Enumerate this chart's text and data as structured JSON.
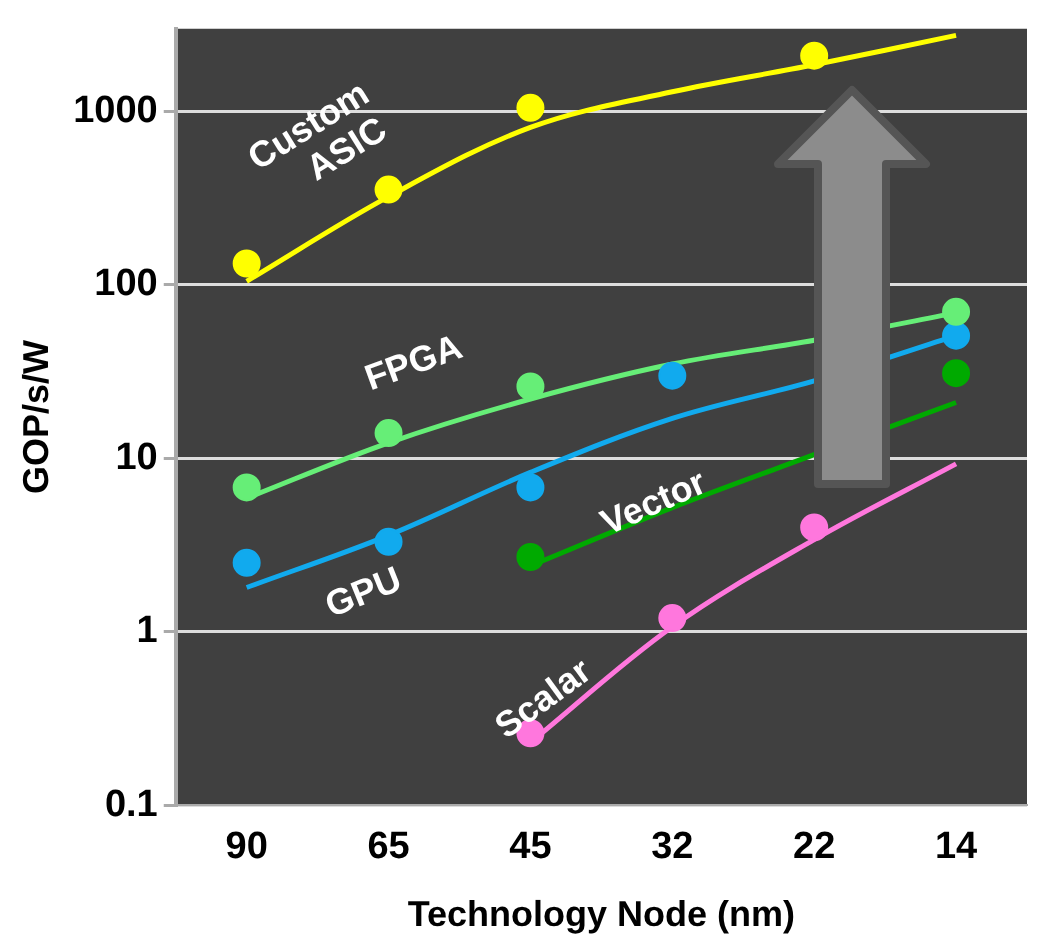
{
  "chart_data": {
    "type": "line",
    "xlabel": "Technology Node (nm)",
    "ylabel": "GOP/s/W",
    "categories": [
      "90",
      "65",
      "45",
      "32",
      "22",
      "14"
    ],
    "log": "y",
    "ylim": [
      0.1,
      3000
    ],
    "yticks": [
      0.1,
      1,
      10,
      100,
      1000
    ],
    "grid": "y",
    "legend": false,
    "series": [
      {
        "type": "line",
        "color": "#ffff00",
        "values": [
          105,
          323,
          810,
          1300,
          1860,
          2750
        ],
        "marker": "none"
      },
      {
        "type": "scatter",
        "name": "Custom ASIC",
        "color": "#ffff00",
        "values": [
          133,
          355,
          1050,
          null,
          2100,
          null
        ],
        "marker": "circle"
      },
      {
        "type": "line",
        "color": "#66ee77",
        "values": [
          5.9,
          12.3,
          22,
          35,
          48,
          69
        ],
        "marker": "none"
      },
      {
        "type": "scatter",
        "name": "FPGA",
        "color": "#66ee77",
        "values": [
          6.8,
          14,
          26,
          null,
          null,
          70
        ],
        "marker": "circle"
      },
      {
        "type": "line",
        "color": "#11aaee",
        "values": [
          1.8,
          3.6,
          8.3,
          17,
          28,
          51
        ],
        "marker": "none"
      },
      {
        "type": "scatter",
        "name": "GPU",
        "color": "#11aaee",
        "values": [
          2.5,
          3.3,
          6.8,
          30,
          null,
          51
        ],
        "marker": "circle"
      },
      {
        "type": "line",
        "color": "#00aa00",
        "values": [
          null,
          null,
          2.4,
          5.2,
          10.5,
          21
        ],
        "marker": "none"
      },
      {
        "type": "scatter",
        "name": "Vector",
        "color": "#00aa00",
        "values": [
          null,
          null,
          2.7,
          null,
          null,
          31
        ],
        "marker": "circle"
      },
      {
        "type": "line",
        "color": "#ff77dd",
        "values": [
          null,
          null,
          0.23,
          1.07,
          3.4,
          9.3
        ],
        "marker": "none"
      },
      {
        "type": "scatter",
        "name": "Scalar",
        "color": "#ff77dd",
        "values": [
          null,
          null,
          0.26,
          1.2,
          4,
          null
        ],
        "marker": "circle"
      }
    ]
  }
}
